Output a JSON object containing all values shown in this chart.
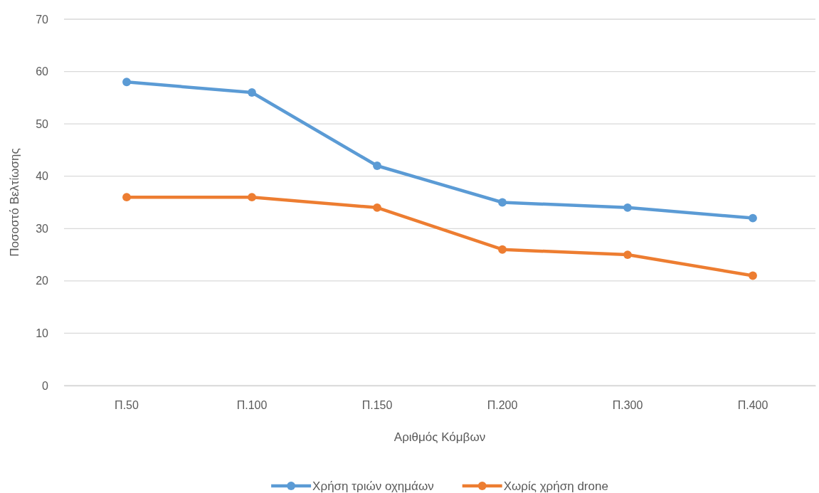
{
  "chart_data": {
    "type": "line",
    "xlabel": "Αριθμός Κόμβων",
    "ylabel": "Ποσοστό Βελτίωσης",
    "categories": [
      "Π.50",
      "Π.100",
      "Π.150",
      "Π.200",
      "Π.300",
      "Π.400"
    ],
    "series": [
      {
        "name": "Χρήση τριών οχημάων",
        "color": "#5b9bd5",
        "values": [
          58,
          56,
          42,
          35,
          34,
          32
        ]
      },
      {
        "name": "Χωρίς χρήση drone",
        "color": "#ed7d31",
        "values": [
          36,
          36,
          34,
          26,
          25,
          21
        ]
      }
    ],
    "ylim": [
      0,
      70
    ],
    "yticks": [
      0,
      10,
      20,
      30,
      40,
      50,
      60,
      70
    ],
    "grid": "y",
    "legend": "bottom",
    "marker": "circle",
    "line_style": "solid"
  }
}
